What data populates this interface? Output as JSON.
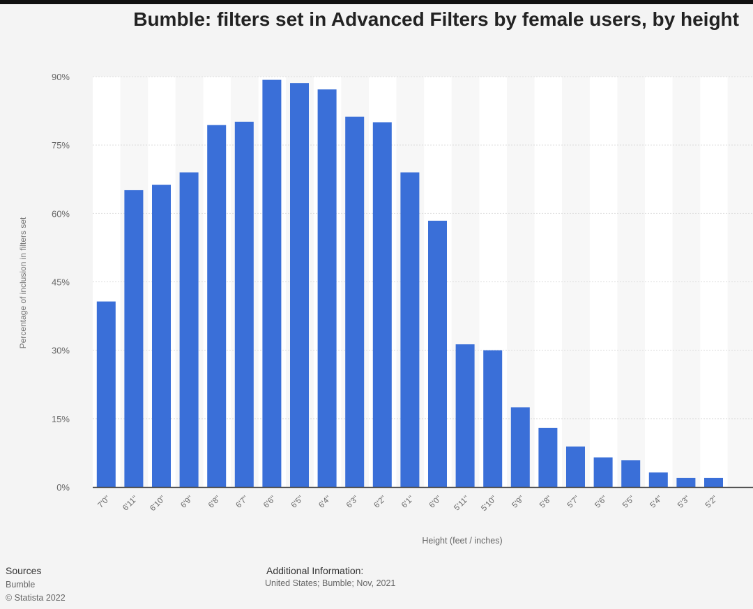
{
  "title": "Bumble: filters set in Advanced Filters by female users, by height",
  "chart_data": {
    "type": "bar",
    "title": "Bumble: filters set in Advanced Filters by female users, by height",
    "xlabel": "Height (feet / inches)",
    "ylabel": "Percentage of inclusion in filters set",
    "ylim": [
      0,
      90
    ],
    "yticks": [
      "0%",
      "15%",
      "30%",
      "45%",
      "60%",
      "75%",
      "90%"
    ],
    "grid": true,
    "bar_color": "#3a6fd8",
    "categories": [
      "7'0\"",
      "6'11\"",
      "6'10\"",
      "6'9\"",
      "6'8\"",
      "6'7\"",
      "6'6\"",
      "6'5\"",
      "6'4\"",
      "6'3\"",
      "6'2\"",
      "6'1\"",
      "6'0\"",
      "5'11\"",
      "5'10\"",
      "5'9\"",
      "5'8\"",
      "5'7\"",
      "5'6\"",
      "5'5\"",
      "5'4\"",
      "5'3\"",
      "5'2\""
    ],
    "values": [
      40.7,
      65.1,
      66.3,
      69.0,
      79.4,
      80.1,
      89.3,
      88.6,
      87.2,
      81.2,
      80.0,
      69.0,
      58.4,
      31.3,
      30.0,
      17.5,
      13.0,
      8.9,
      6.5,
      5.9,
      3.2,
      2.0,
      2.0
    ]
  },
  "footer": {
    "sources_label": "Sources",
    "source": "Bumble",
    "copyright": "© Statista 2022",
    "additional_label": "Additional Information:",
    "additional_text": "United States; Bumble; Nov, 2021"
  }
}
